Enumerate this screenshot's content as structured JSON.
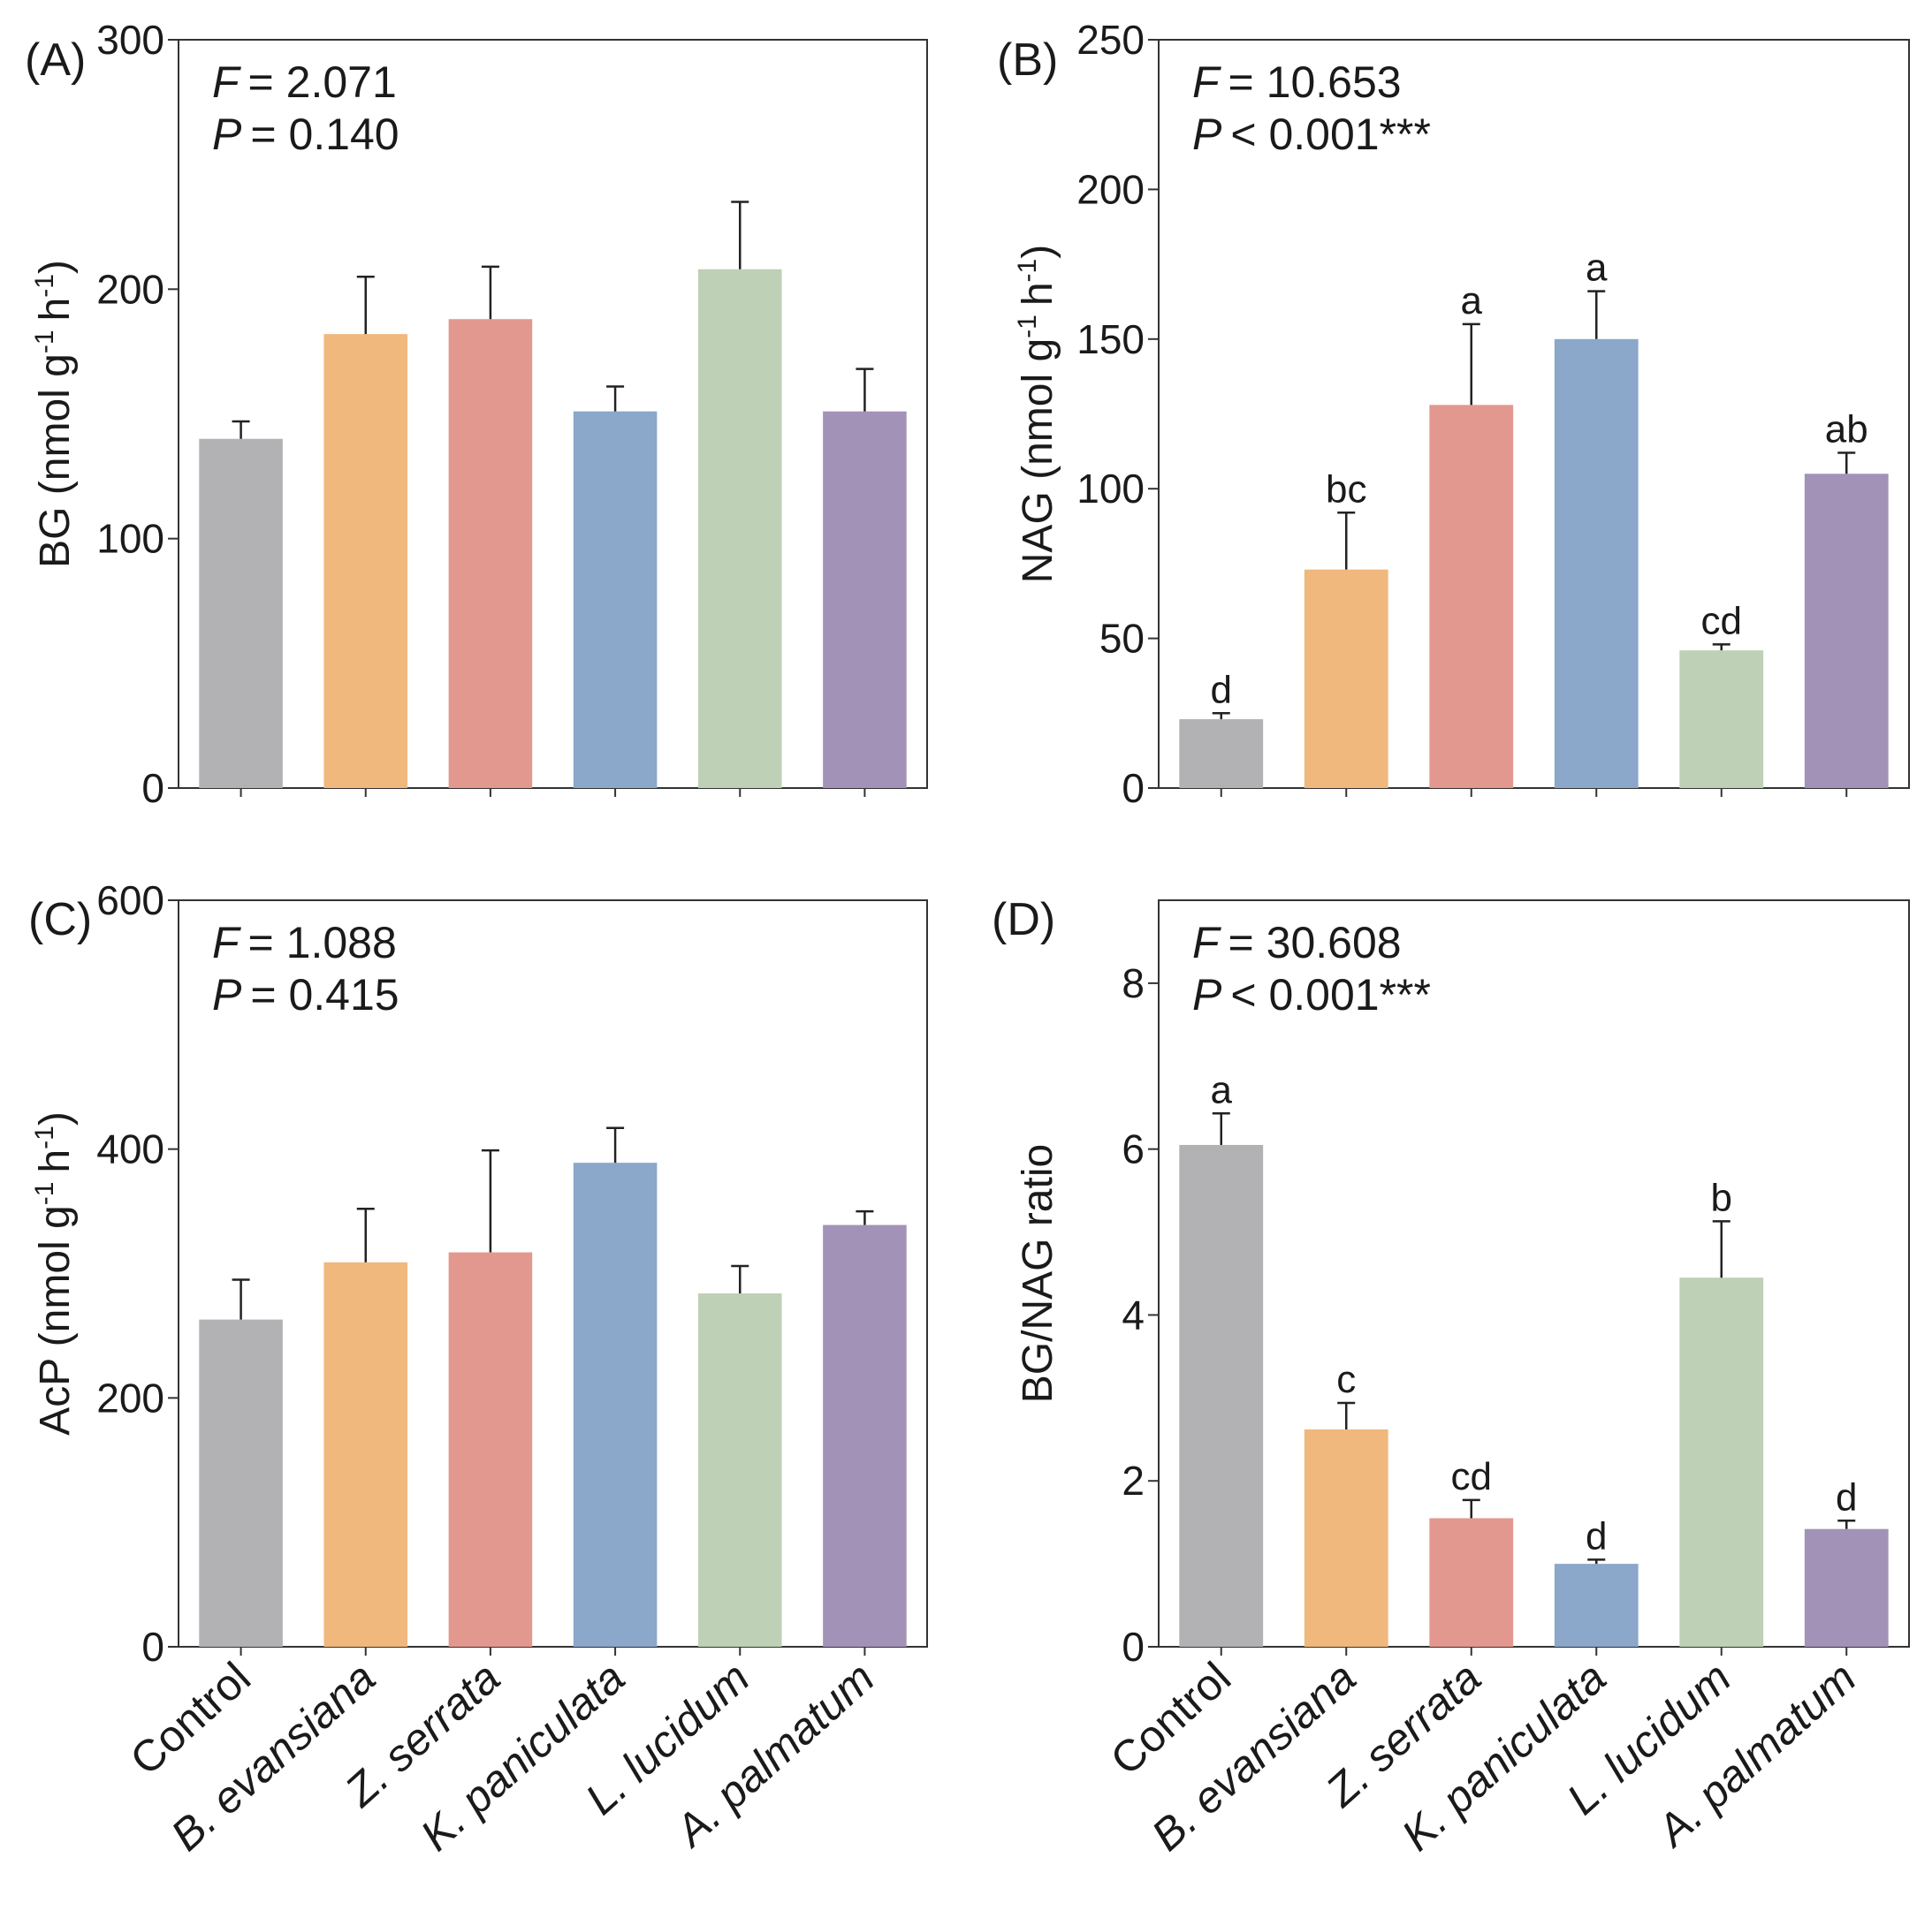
{
  "chart_data": [
    {
      "type": "bar",
      "panel_label": "(A)",
      "ylabel": "BG (nmol g-1 h-1)",
      "ylabel_main": "BG (nmol g",
      "ylabel_unit": "h",
      "ylabel_sup": "-1",
      "ylabel_close": ")",
      "stat_f_value": "= 2.071",
      "stat_p_value": "= 0.140",
      "ylim": [
        0,
        300
      ],
      "yticks": [
        0,
        100,
        200,
        300
      ],
      "categories": [
        "Control",
        "B. evansiana",
        "Z. serrata",
        "K. paniculata",
        "L. lucidum",
        "A. palmatum"
      ],
      "values": [
        140,
        182,
        188,
        151,
        208,
        151
      ],
      "errors": [
        7,
        23,
        21,
        10,
        27,
        17
      ],
      "letters": [
        "",
        "",
        "",
        "",
        "",
        ""
      ],
      "show_categories": false
    },
    {
      "type": "bar",
      "panel_label": "(B)",
      "ylabel": "NAG (nmol g-1 h-1)",
      "ylabel_main": "NAG (nmol g",
      "ylabel_unit": "h",
      "ylabel_sup": "-1",
      "ylabel_close": ")",
      "stat_f_value": "= 10.653",
      "stat_p_value": "< 0.001***",
      "ylim": [
        0,
        250
      ],
      "yticks": [
        0,
        50,
        100,
        150,
        200,
        250
      ],
      "categories": [
        "Control",
        "B. evansiana",
        "Z. serrata",
        "K. paniculata",
        "L. lucidum",
        "A. palmatum"
      ],
      "values": [
        23,
        73,
        128,
        150,
        46,
        105
      ],
      "errors": [
        2,
        19,
        27,
        16,
        2,
        7
      ],
      "letters": [
        "d",
        "bc",
        "a",
        "a",
        "cd",
        "ab"
      ],
      "show_categories": false
    },
    {
      "type": "bar",
      "panel_label": "(C)",
      "ylabel": "AcP (nmol g-1 h-1)",
      "ylabel_main": "AcP (nmol g",
      "ylabel_unit": "h",
      "ylabel_sup": "-1",
      "ylabel_close": ")",
      "stat_f_value": "= 1.088",
      "stat_p_value": "= 0.415",
      "ylim": [
        0,
        600
      ],
      "yticks": [
        0,
        200,
        400,
        600
      ],
      "categories": [
        "Control",
        "B. evansiana",
        "Z. serrata",
        "K. paniculata",
        "L. lucidum",
        "A. palmatum"
      ],
      "values": [
        263,
        309,
        317,
        389,
        284,
        339
      ],
      "errors": [
        32,
        43,
        82,
        28,
        22,
        11
      ],
      "letters": [
        "",
        "",
        "",
        "",
        "",
        ""
      ],
      "show_categories": true
    },
    {
      "type": "bar",
      "panel_label": "(D)",
      "ylabel": "BG/NAG ratio",
      "ylabel_main": "BG/NAG ratio",
      "ylabel_unit": "",
      "ylabel_sup": "",
      "ylabel_close": "",
      "stat_f_value": "= 30.608",
      "stat_p_value": "< 0.001***",
      "ylim": [
        0,
        9
      ],
      "yticks": [
        0,
        2,
        4,
        6,
        8
      ],
      "categories": [
        "Control",
        "B. evansiana",
        "Z. serrata",
        "K. paniculata",
        "L. lucidum",
        "A. palmatum"
      ],
      "values": [
        6.05,
        2.62,
        1.55,
        1.0,
        4.45,
        1.42
      ],
      "errors": [
        0.38,
        0.32,
        0.22,
        0.05,
        0.68,
        0.1
      ],
      "letters": [
        "a",
        "c",
        "cd",
        "d",
        "b",
        "d"
      ],
      "show_categories": true
    }
  ],
  "style": {
    "bar_colors": [
      "#b2b2b4",
      "#f0b87c",
      "#e2988e",
      "#8ba7c9",
      "#bed0b6",
      "#a392b8"
    ],
    "axis_color": "#333333",
    "stat_f_symbol": "F",
    "stat_p_symbol": "P"
  }
}
